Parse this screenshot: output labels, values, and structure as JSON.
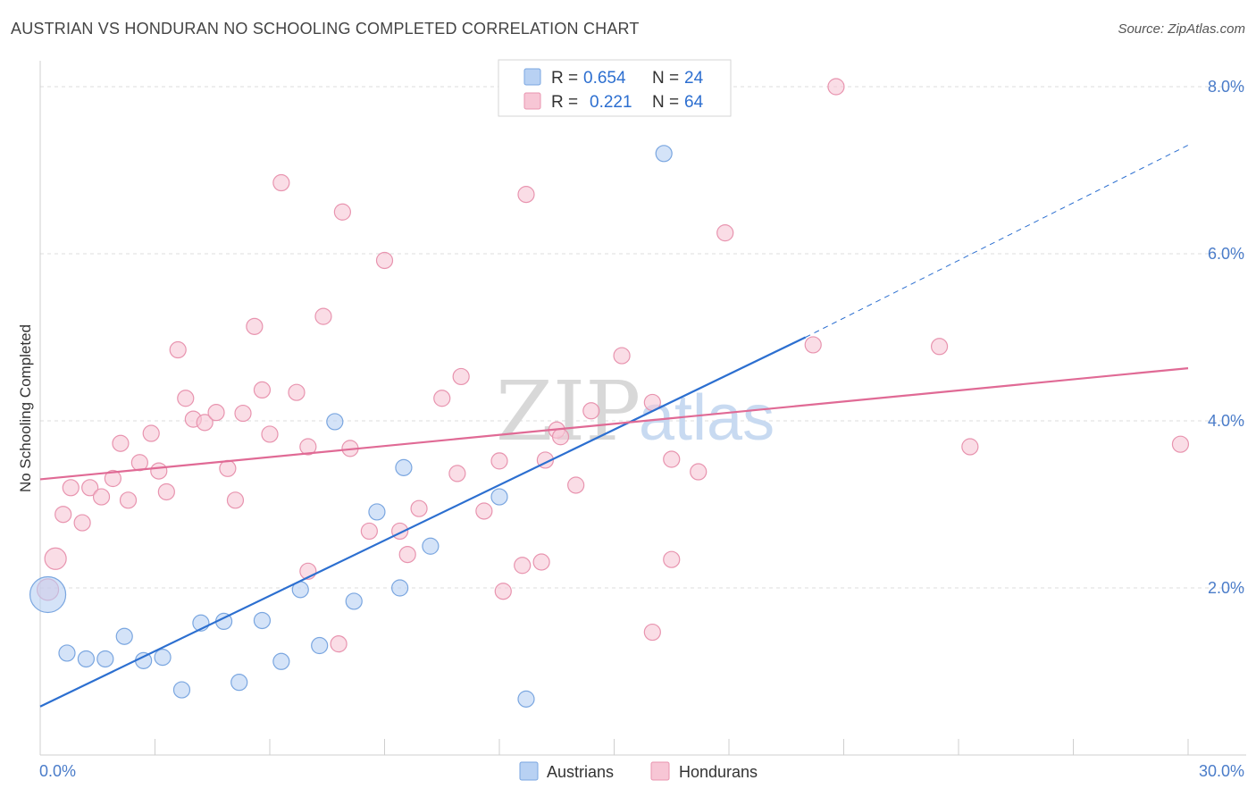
{
  "title": "AUSTRIAN VS HONDURAN NO SCHOOLING COMPLETED CORRELATION CHART",
  "source": "Source: ZipAtlas.com",
  "watermark": {
    "zip": "ZIP",
    "atlas": "atlas"
  },
  "colors": {
    "austrians_fill": "#b8d1f3",
    "austrians_stroke": "#7aa6e0",
    "austrians_line": "#2c6fd0",
    "hondurans_fill": "#f7c6d5",
    "hondurans_stroke": "#e894af",
    "hondurans_line": "#e06a95"
  },
  "legend": {
    "rows": [
      {
        "r_label": "R =",
        "r_value": "0.654",
        "n_label": "N =",
        "n_value": "24"
      },
      {
        "r_label": "R =",
        "r_value": "0.221",
        "n_label": "N =",
        "n_value": "64"
      }
    ]
  },
  "bottom_legend": [
    "Austrians",
    "Hondurans"
  ],
  "chart_data": {
    "type": "scatter",
    "title": "AUSTRIAN VS HONDURAN NO SCHOOLING COMPLETED CORRELATION CHART",
    "ylabel": "No Schooling Completed",
    "xlabel": "",
    "xlim": [
      0,
      30
    ],
    "ylim": [
      0,
      8
    ],
    "x_tick_labels": [
      "0.0%",
      "30.0%"
    ],
    "y_ticks": [
      2,
      4,
      6,
      8
    ],
    "y_tick_labels": [
      "2.0%",
      "4.0%",
      "6.0%",
      "8.0%"
    ],
    "grid": "horizontal dashed",
    "legend_position": "top-center",
    "series": [
      {
        "name": "Austrians",
        "r": 0.654,
        "n": 24,
        "points": [
          [
            0.2,
            1.92
          ],
          [
            0.7,
            1.22
          ],
          [
            1.2,
            1.15
          ],
          [
            1.7,
            1.15
          ],
          [
            2.2,
            1.42
          ],
          [
            2.7,
            1.13
          ],
          [
            3.2,
            1.17
          ],
          [
            3.7,
            0.78
          ],
          [
            4.2,
            1.58
          ],
          [
            4.8,
            1.6
          ],
          [
            5.2,
            0.87
          ],
          [
            5.8,
            1.61
          ],
          [
            6.3,
            1.12
          ],
          [
            6.8,
            1.98
          ],
          [
            7.3,
            1.31
          ],
          [
            7.7,
            3.99
          ],
          [
            8.2,
            1.84
          ],
          [
            8.8,
            2.91
          ],
          [
            9.4,
            2.0
          ],
          [
            9.5,
            3.44
          ],
          [
            10.2,
            2.5
          ],
          [
            12.0,
            3.09
          ],
          [
            12.7,
            0.67
          ],
          [
            16.3,
            7.2
          ]
        ],
        "trend": {
          "x0": 0,
          "y0": 0.58,
          "x1": 20.0,
          "y1": 5.0,
          "dash_x1": 30.0,
          "dash_y1": 7.3
        }
      },
      {
        "name": "Hondurans",
        "r": 0.221,
        "n": 64,
        "points": [
          [
            0.2,
            1.98
          ],
          [
            0.4,
            2.35
          ],
          [
            0.6,
            2.88
          ],
          [
            0.8,
            3.2
          ],
          [
            1.1,
            2.78
          ],
          [
            1.3,
            3.2
          ],
          [
            1.6,
            3.09
          ],
          [
            1.9,
            3.31
          ],
          [
            2.1,
            3.73
          ],
          [
            2.3,
            3.05
          ],
          [
            2.6,
            3.5
          ],
          [
            2.9,
            3.85
          ],
          [
            3.1,
            3.4
          ],
          [
            3.3,
            3.15
          ],
          [
            3.6,
            4.85
          ],
          [
            3.8,
            4.27
          ],
          [
            4.0,
            4.02
          ],
          [
            4.3,
            3.98
          ],
          [
            4.6,
            4.1
          ],
          [
            4.9,
            3.43
          ],
          [
            5.1,
            3.05
          ],
          [
            5.3,
            4.09
          ],
          [
            5.6,
            5.13
          ],
          [
            5.8,
            4.37
          ],
          [
            6.0,
            3.84
          ],
          [
            6.3,
            6.85
          ],
          [
            6.7,
            4.34
          ],
          [
            7.0,
            2.2
          ],
          [
            7.0,
            3.69
          ],
          [
            7.4,
            5.25
          ],
          [
            7.8,
            1.33
          ],
          [
            7.9,
            6.5
          ],
          [
            8.1,
            3.67
          ],
          [
            8.6,
            2.68
          ],
          [
            9.0,
            5.92
          ],
          [
            9.4,
            2.68
          ],
          [
            9.6,
            2.4
          ],
          [
            9.9,
            2.95
          ],
          [
            10.5,
            4.27
          ],
          [
            10.9,
            3.37
          ],
          [
            11.0,
            4.53
          ],
          [
            11.6,
            2.92
          ],
          [
            12.0,
            3.52
          ],
          [
            12.1,
            1.96
          ],
          [
            12.6,
            2.27
          ],
          [
            12.7,
            6.71
          ],
          [
            13.1,
            2.31
          ],
          [
            13.2,
            3.53
          ],
          [
            13.5,
            3.89
          ],
          [
            13.6,
            3.81
          ],
          [
            14.0,
            3.23
          ],
          [
            14.4,
            4.12
          ],
          [
            15.2,
            4.78
          ],
          [
            16.0,
            4.22
          ],
          [
            16.0,
            1.47
          ],
          [
            16.5,
            3.54
          ],
          [
            16.5,
            2.34
          ],
          [
            17.2,
            3.39
          ],
          [
            17.9,
            6.25
          ],
          [
            20.2,
            4.91
          ],
          [
            20.8,
            8.0
          ],
          [
            23.5,
            4.89
          ],
          [
            24.3,
            3.69
          ],
          [
            29.8,
            3.72
          ]
        ],
        "trend": {
          "x0": 0,
          "y0": 3.3,
          "x1": 30.0,
          "y1": 4.63
        }
      }
    ]
  }
}
